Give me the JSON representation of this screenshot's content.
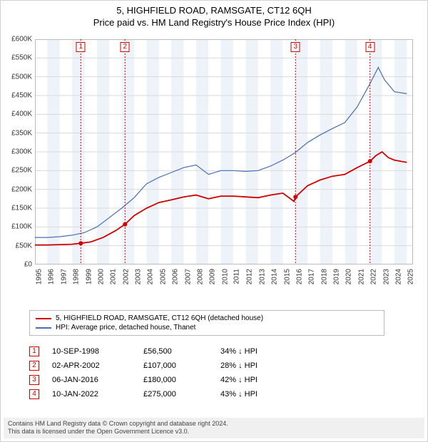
{
  "title": {
    "line1": "5, HIGHFIELD ROAD, RAMSGATE, CT12 6QH",
    "line2": "Price paid vs. HM Land Registry's House Price Index (HPI)",
    "fontsize": 13
  },
  "chart": {
    "type": "line",
    "background_color": "#ffffff",
    "grid_color": "#d9d9d9",
    "alt_band_color": "#eef2f9",
    "x_axis": {
      "min": 1995,
      "max": 2025.5,
      "ticks": [
        1995,
        1996,
        1997,
        1998,
        1999,
        2000,
        2001,
        2002,
        2003,
        2004,
        2005,
        2006,
        2007,
        2008,
        2009,
        2010,
        2011,
        2012,
        2013,
        2014,
        2015,
        2016,
        2017,
        2018,
        2019,
        2020,
        2021,
        2022,
        2023,
        2024,
        2025
      ],
      "label_fontsize": 10
    },
    "y_axis": {
      "min": 0,
      "max": 600000,
      "ticks": [
        0,
        50000,
        100000,
        150000,
        200000,
        250000,
        300000,
        350000,
        400000,
        450000,
        500000,
        550000,
        600000
      ],
      "tick_labels": [
        "£0",
        "£50K",
        "£100K",
        "£150K",
        "£200K",
        "£250K",
        "£300K",
        "£350K",
        "£400K",
        "£450K",
        "£500K",
        "£550K",
        "£600K"
      ],
      "label_fontsize": 10
    },
    "series": [
      {
        "name": "5, HIGHFIELD ROAD, RAMSGATE, CT12 6QH (detached house)",
        "color": "#d00000",
        "line_width": 1.8,
        "points": [
          [
            1995.0,
            52000
          ],
          [
            1996.0,
            52000
          ],
          [
            1997.0,
            53000
          ],
          [
            1998.0,
            54000
          ],
          [
            1998.7,
            56500
          ],
          [
            1999.5,
            60000
          ],
          [
            2000.5,
            72000
          ],
          [
            2001.5,
            90000
          ],
          [
            2002.27,
            107000
          ],
          [
            2003.0,
            130000
          ],
          [
            2004.0,
            150000
          ],
          [
            2005.0,
            165000
          ],
          [
            2006.0,
            172000
          ],
          [
            2007.0,
            180000
          ],
          [
            2008.0,
            185000
          ],
          [
            2009.0,
            175000
          ],
          [
            2010.0,
            182000
          ],
          [
            2011.0,
            182000
          ],
          [
            2012.0,
            180000
          ],
          [
            2013.0,
            178000
          ],
          [
            2014.0,
            185000
          ],
          [
            2015.0,
            190000
          ],
          [
            2015.9,
            168000
          ],
          [
            2016.02,
            180000
          ],
          [
            2017.0,
            210000
          ],
          [
            2018.0,
            225000
          ],
          [
            2019.0,
            235000
          ],
          [
            2020.0,
            240000
          ],
          [
            2021.0,
            258000
          ],
          [
            2022.03,
            275000
          ],
          [
            2022.5,
            290000
          ],
          [
            2023.0,
            300000
          ],
          [
            2023.5,
            285000
          ],
          [
            2024.0,
            278000
          ],
          [
            2025.0,
            272000
          ]
        ]
      },
      {
        "name": "HPI: Average price, detached house, Thanet",
        "color": "#4a6fb5",
        "line_width": 1.2,
        "points": [
          [
            1995.0,
            72000
          ],
          [
            1996.0,
            72000
          ],
          [
            1997.0,
            74000
          ],
          [
            1998.0,
            78000
          ],
          [
            1999.0,
            85000
          ],
          [
            2000.0,
            100000
          ],
          [
            2001.0,
            125000
          ],
          [
            2002.0,
            150000
          ],
          [
            2003.0,
            178000
          ],
          [
            2004.0,
            215000
          ],
          [
            2005.0,
            232000
          ],
          [
            2006.0,
            245000
          ],
          [
            2007.0,
            258000
          ],
          [
            2008.0,
            265000
          ],
          [
            2009.0,
            240000
          ],
          [
            2010.0,
            250000
          ],
          [
            2011.0,
            250000
          ],
          [
            2012.0,
            248000
          ],
          [
            2013.0,
            250000
          ],
          [
            2014.0,
            262000
          ],
          [
            2015.0,
            278000
          ],
          [
            2016.0,
            298000
          ],
          [
            2017.0,
            325000
          ],
          [
            2018.0,
            345000
          ],
          [
            2019.0,
            362000
          ],
          [
            2020.0,
            378000
          ],
          [
            2021.0,
            420000
          ],
          [
            2022.0,
            480000
          ],
          [
            2022.7,
            525000
          ],
          [
            2023.2,
            492000
          ],
          [
            2024.0,
            460000
          ],
          [
            2025.0,
            455000
          ]
        ]
      }
    ],
    "sale_markers": [
      {
        "num": "1",
        "x": 1998.7,
        "y": 56500
      },
      {
        "num": "2",
        "x": 2002.27,
        "y": 107000
      },
      {
        "num": "3",
        "x": 2016.02,
        "y": 180000
      },
      {
        "num": "4",
        "x": 2022.03,
        "y": 275000
      }
    ],
    "marker_line_color": "#d00000",
    "marker_line_dash": "2,2",
    "sale_point_fill": "#d00000",
    "sale_point_radius": 3
  },
  "legend": {
    "items": [
      {
        "color": "#d00000",
        "label": "5, HIGHFIELD ROAD, RAMSGATE, CT12 6QH (detached house)"
      },
      {
        "color": "#4a6fb5",
        "label": "HPI: Average price, detached house, Thanet"
      }
    ]
  },
  "events": [
    {
      "num": "1",
      "date": "10-SEP-1998",
      "price": "£56,500",
      "diff": "34% ↓ HPI"
    },
    {
      "num": "2",
      "date": "02-APR-2002",
      "price": "£107,000",
      "diff": "28% ↓ HPI"
    },
    {
      "num": "3",
      "date": "06-JAN-2016",
      "price": "£180,000",
      "diff": "42% ↓ HPI"
    },
    {
      "num": "4",
      "date": "10-JAN-2022",
      "price": "£275,000",
      "diff": "43% ↓ HPI"
    }
  ],
  "footer": {
    "line1": "Contains HM Land Registry data © Crown copyright and database right 2024.",
    "line2": "This data is licensed under the Open Government Licence v3.0."
  }
}
